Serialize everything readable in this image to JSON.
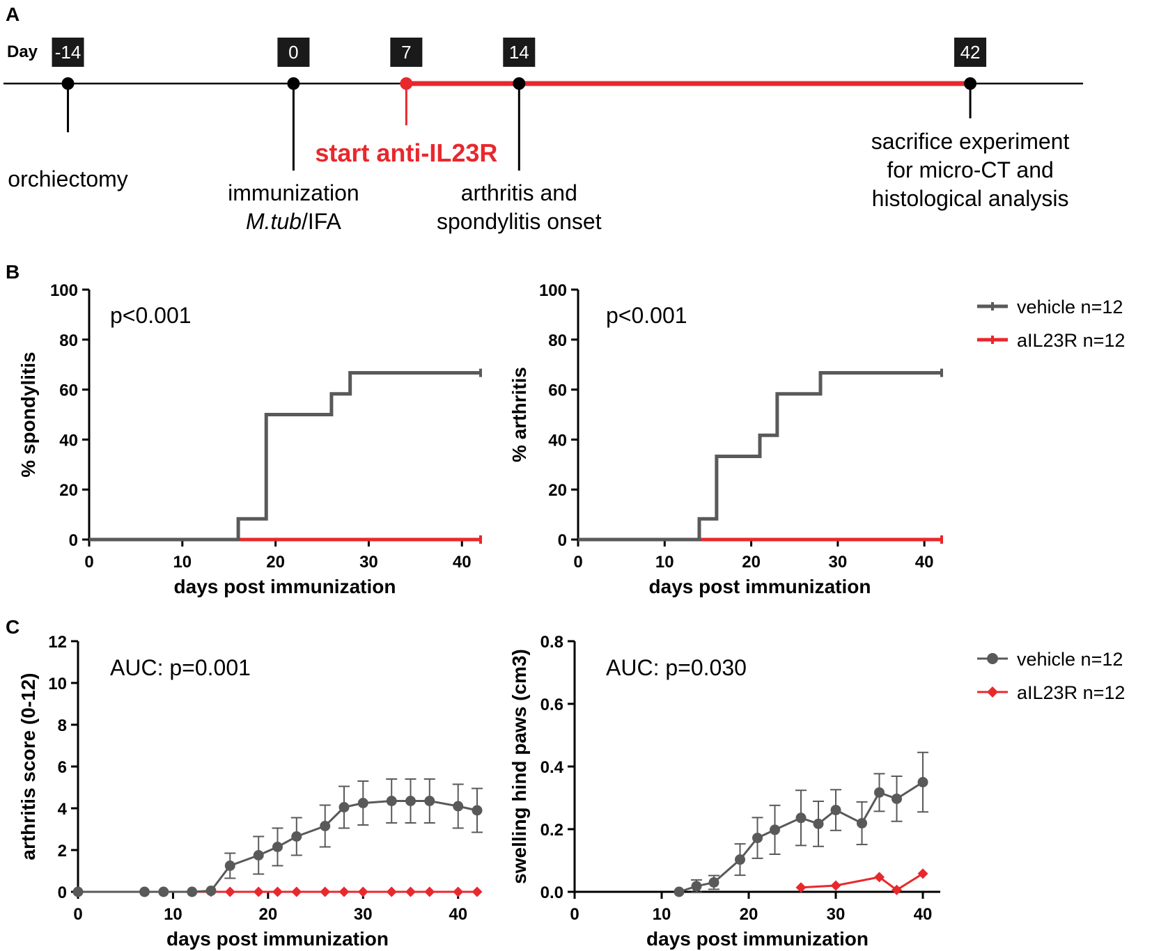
{
  "panels": {
    "A": "A",
    "B": "B",
    "C": "C"
  },
  "colors": {
    "vehicle": "#595959",
    "treatment": "#e8282d",
    "axis": "#000000",
    "timeline": "#000000"
  },
  "timeline": {
    "day_label": "Day",
    "axis_min": -18,
    "axis_max": 49,
    "red_start_day": 7,
    "red_end_day": 42,
    "events": [
      {
        "day": -14,
        "box": "-14",
        "color": "black",
        "dir": "down",
        "lines": [
          "orchiectomy"
        ]
      },
      {
        "day": 0,
        "box": "0",
        "color": "black",
        "dir": "down",
        "lines": [
          "immunization",
          "M.tub/IFA"
        ]
      },
      {
        "day": 7,
        "box": "7",
        "color": "red",
        "dir": "down",
        "lines": [
          "start anti-IL23R"
        ]
      },
      {
        "day": 14,
        "box": "14",
        "color": "black",
        "dir": "down",
        "lines": [
          "arthritis and",
          "spondylitis onset"
        ]
      },
      {
        "day": 42,
        "box": "42",
        "color": "black",
        "dir": "down",
        "lines": [
          "sacrifice experiment",
          "for micro-CT and",
          "histological analysis"
        ]
      }
    ],
    "immunization_italic": "M.tub",
    "immunization_rest": "/IFA"
  },
  "chart_data": [
    {
      "id": "spondylitis",
      "type": "line",
      "step": true,
      "title": "",
      "annotation": "p<0.001",
      "xlabel": "days post immunization",
      "ylabel": "% spondylitis",
      "xlim": [
        0,
        42
      ],
      "ylim": [
        0,
        100
      ],
      "xticks": [
        0,
        10,
        20,
        30,
        40
      ],
      "yticks": [
        0,
        20,
        40,
        60,
        80,
        100
      ],
      "series": [
        {
          "name": "vehicle n=12",
          "x": [
            0,
            16,
            19,
            26,
            28,
            42
          ],
          "y": [
            0,
            8.3,
            50,
            58.3,
            66.7,
            66.7
          ]
        },
        {
          "name": "aIL23R n=12",
          "x": [
            0,
            42
          ],
          "y": [
            0,
            0
          ]
        }
      ]
    },
    {
      "id": "arthritis-incidence",
      "type": "line",
      "step": true,
      "title": "",
      "annotation": "p<0.001",
      "xlabel": "days post immunization",
      "ylabel": "% arthritis",
      "xlim": [
        0,
        42
      ],
      "ylim": [
        0,
        100
      ],
      "xticks": [
        0,
        10,
        20,
        30,
        40
      ],
      "yticks": [
        0,
        20,
        40,
        60,
        80,
        100
      ],
      "series": [
        {
          "name": "vehicle n=12",
          "x": [
            0,
            14,
            16,
            21,
            23,
            28,
            42
          ],
          "y": [
            0,
            8.3,
            33.3,
            41.7,
            58.3,
            66.7,
            66.7
          ]
        },
        {
          "name": "aIL23R n=12",
          "x": [
            0,
            42
          ],
          "y": [
            0,
            0
          ]
        }
      ]
    },
    {
      "id": "arthritis-score",
      "type": "line",
      "title": "",
      "annotation": "AUC: p=0.001",
      "xlabel": "days post immunization",
      "ylabel": "arthritis score (0-12)",
      "xlim": [
        0,
        42
      ],
      "ylim": [
        0,
        12
      ],
      "xticks": [
        0,
        10,
        20,
        30,
        40
      ],
      "yticks": [
        0,
        2,
        4,
        6,
        8,
        10,
        12
      ],
      "series": [
        {
          "name": "vehicle n=12",
          "x": [
            0,
            7,
            9,
            12,
            14,
            16,
            19,
            21,
            23,
            26,
            28,
            30,
            33,
            35,
            37,
            40,
            42
          ],
          "y": [
            0,
            0,
            0,
            0,
            0.05,
            1.25,
            1.75,
            2.15,
            2.65,
            3.15,
            4.05,
            4.25,
            4.35,
            4.35,
            4.35,
            4.1,
            3.9
          ],
          "err": [
            0,
            0,
            0,
            0,
            0,
            0.6,
            0.9,
            0.9,
            0.9,
            1.0,
            1.0,
            1.05,
            1.05,
            1.05,
            1.05,
            1.05,
            1.05
          ]
        },
        {
          "name": "aIL23R n=12",
          "x": [
            0,
            7,
            9,
            12,
            14,
            16,
            19,
            21,
            23,
            26,
            28,
            30,
            33,
            35,
            37,
            40,
            42
          ],
          "y": [
            0,
            0,
            0,
            0,
            0,
            0,
            0,
            0,
            0,
            0,
            0,
            0,
            0,
            0,
            0,
            0,
            0
          ]
        }
      ]
    },
    {
      "id": "swelling",
      "type": "line",
      "title": "",
      "annotation": "AUC: p=0.030",
      "xlabel": "days post immunization",
      "ylabel": "swelling hind paws (cm3)",
      "xlim": [
        0,
        42
      ],
      "ylim": [
        0,
        0.8
      ],
      "xticks": [
        0,
        10,
        20,
        30,
        40
      ],
      "yticks": [
        0.0,
        0.2,
        0.4,
        0.6,
        0.8
      ],
      "yticklabels": [
        "0.0",
        "0.2",
        "0.4",
        "0.6",
        "0.8"
      ],
      "series": [
        {
          "name": "vehicle n=12",
          "x": [
            12,
            14,
            16,
            19,
            21,
            23,
            26,
            28,
            30,
            33,
            35,
            37,
            40
          ],
          "y": [
            0,
            0.018,
            0.03,
            0.103,
            0.172,
            0.198,
            0.236,
            0.217,
            0.261,
            0.219,
            0.317,
            0.297,
            0.35
          ],
          "err": [
            0,
            0.02,
            0.022,
            0.05,
            0.065,
            0.078,
            0.088,
            0.072,
            0.065,
            0.068,
            0.06,
            0.072,
            0.095
          ]
        },
        {
          "name": "aIL23R n=12",
          "x": [
            26,
            30,
            35,
            37,
            40
          ],
          "y": [
            0.014,
            0.02,
            0.047,
            0.006,
            0.058
          ]
        }
      ]
    }
  ],
  "legends": {
    "B": [
      {
        "name": "vehicle n=12",
        "marker": "bar"
      },
      {
        "name": "aIL23R n=12",
        "marker": "bar"
      }
    ],
    "C": [
      {
        "name": "vehicle n=12",
        "marker": "circle"
      },
      {
        "name": "aIL23R n=12",
        "marker": "diamond"
      }
    ]
  }
}
